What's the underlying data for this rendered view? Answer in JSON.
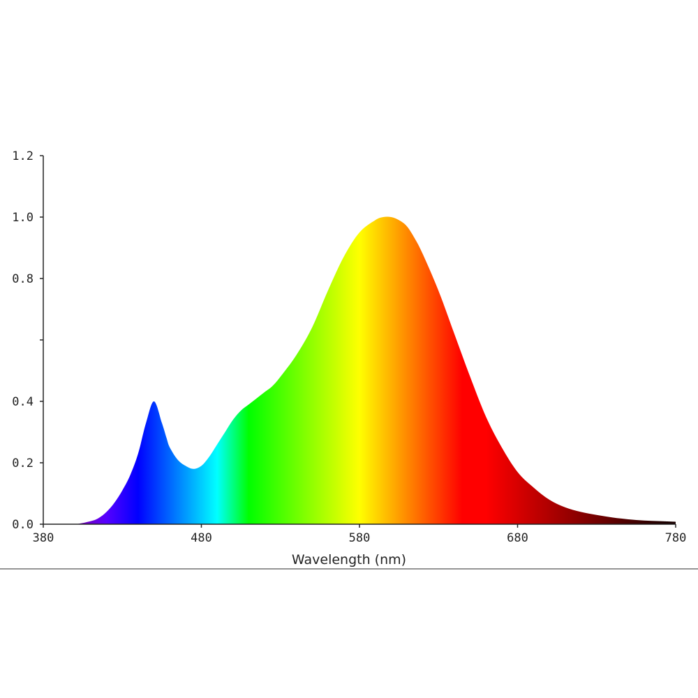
{
  "chart_data": {
    "type": "area",
    "title": "",
    "xlabel": "Wavelength (nm)",
    "ylabel": "",
    "xlim": [
      380,
      780
    ],
    "ylim": [
      0,
      1.2
    ],
    "grid": false,
    "x_ticks": [
      "380",
      "480",
      "580",
      "680",
      "780"
    ],
    "y_ticks": [
      "0.0",
      "0.2",
      "0.4",
      "",
      "0.8",
      "1.0",
      "1.2"
    ],
    "fill": "visible-spectrum gradient",
    "series": [
      {
        "x": [
          380,
          390,
          400,
          410,
          415,
          420,
          425,
          430,
          435,
          440,
          445,
          450,
          455,
          458,
          460,
          465,
          470,
          475,
          480,
          485,
          490,
          495,
          500,
          505,
          510,
          515,
          520,
          525,
          530,
          540,
          550,
          560,
          570,
          580,
          590,
          595,
          600,
          605,
          610,
          615,
          620,
          630,
          640,
          650,
          660,
          670,
          680,
          690,
          700,
          710,
          720,
          730,
          740,
          750,
          760,
          770,
          780
        ],
        "values": [
          0.0,
          0.0,
          0.0,
          0.01,
          0.02,
          0.04,
          0.07,
          0.11,
          0.16,
          0.23,
          0.33,
          0.4,
          0.33,
          0.28,
          0.25,
          0.21,
          0.19,
          0.18,
          0.19,
          0.22,
          0.26,
          0.3,
          0.34,
          0.37,
          0.39,
          0.41,
          0.43,
          0.45,
          0.48,
          0.55,
          0.64,
          0.76,
          0.87,
          0.95,
          0.99,
          1.0,
          1.0,
          0.99,
          0.97,
          0.93,
          0.88,
          0.76,
          0.62,
          0.48,
          0.35,
          0.25,
          0.17,
          0.12,
          0.08,
          0.055,
          0.04,
          0.03,
          0.022,
          0.016,
          0.012,
          0.01,
          0.008
        ]
      }
    ]
  }
}
